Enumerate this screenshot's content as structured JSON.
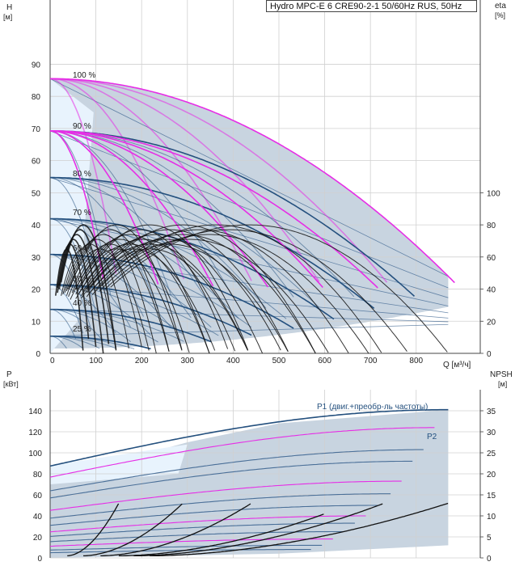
{
  "title": "Hydro MPC-E 6 CRE90-2-1 50/60Hz RUS, 50Hz",
  "top_chart": {
    "ylabel_left": "H",
    "ylabel_left_unit": "[м]",
    "ylabel_right": "eta",
    "ylabel_right_unit": "[%]",
    "xlabel": "Q [м³/ч]"
  },
  "bottom_chart": {
    "ylabel_left": "P",
    "ylabel_left_unit": "[кВт]",
    "ylabel_right": "NPSH",
    "ylabel_right_unit": "[м]",
    "p1_label": "P1 (двиг.+преобр-ль частоты)",
    "p2_label": "P2"
  },
  "chart_data": [
    {
      "type": "line",
      "title": "H / eta vs Q",
      "x_ticks": [
        0,
        100,
        200,
        300,
        400,
        500,
        600,
        700,
        800
      ],
      "xlim": [
        0,
        940
      ],
      "y_left_ticks": [
        0,
        10,
        20,
        30,
        40,
        50,
        60,
        70,
        80,
        90
      ],
      "ylim_left": [
        0,
        110
      ],
      "y_right_ticks": [
        0,
        20,
        40,
        60,
        80,
        100
      ],
      "ylim_right": [
        0,
        220
      ],
      "speed_labels": [
        {
          "text": "100 %",
          "speed": 1.0
        },
        {
          "text": "90 %",
          "speed": 0.9
        },
        {
          "text": "80 %",
          "speed": 0.8
        },
        {
          "text": "70 %",
          "speed": 0.7
        },
        {
          "text": "60 %",
          "speed": 0.6
        },
        {
          "text": "50 %",
          "speed": 0.5
        },
        {
          "text": "40 %",
          "speed": 0.4
        },
        {
          "text": "25 %",
          "speed": 0.25
        }
      ],
      "pump_counts": [
        1,
        2,
        3,
        4,
        5,
        6
      ],
      "qmax_single": 145,
      "h0": 85.5,
      "speeds": [
        1.0,
        0.9,
        0.8,
        0.7,
        0.6,
        0.5,
        0.4,
        0.25
      ],
      "colors": {
        "envelope": "#c8d4e0",
        "curve_dark": "#24507e",
        "curve_mid": "#4a6f98",
        "magenta": "#e62ee6",
        "eta": "#111111",
        "light": "#e8f3fd"
      }
    },
    {
      "type": "line",
      "title": "P / NPSH vs Q",
      "x_ticks": [
        0,
        100,
        200,
        300,
        400,
        500,
        600,
        700,
        800
      ],
      "xlim": [
        0,
        940
      ],
      "y_left_ticks": [
        0,
        20,
        40,
        60,
        80,
        100,
        120,
        140
      ],
      "ylim_left": [
        0,
        160
      ],
      "y_right_ticks": [
        0,
        5,
        10,
        15,
        20,
        25,
        30,
        35
      ],
      "ylim_right": [
        0,
        40
      ],
      "p1_max": 141,
      "p2_max": 124
    }
  ]
}
